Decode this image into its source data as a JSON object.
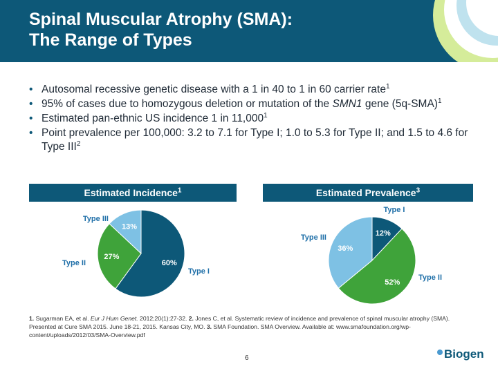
{
  "slide": {
    "title_line1": "Spinal Muscular Atrophy (SMA):",
    "title_line2": "The Range of Types",
    "page_number": "6",
    "logo_text": "Biogen"
  },
  "bullets": [
    {
      "text": "Autosomal recessive genetic disease with a 1 in 40 to 1 in 60 carrier rate",
      "sup": "1"
    },
    {
      "text_a": "95% of cases due to homozygous deletion or mutation of the ",
      "italic": "SMN1",
      "text_b": " gene (5q-SMA)",
      "sup": "1"
    },
    {
      "text": "Estimated pan-ethnic US incidence 1 in 11,000",
      "sup": "1"
    },
    {
      "text": "Point prevalence per 100,000: 3.2 to 7.1 for Type I; 1.0 to 5.3 for Type II; and 1.5 to 4.6 for Type III",
      "sup": "2"
    }
  ],
  "colors": {
    "type_i": "#0d5878",
    "type_ii": "#3fa33a",
    "type_iii": "#7ec1e4",
    "label": "#1f6fa8"
  },
  "chart_data": [
    {
      "type": "pie",
      "title": "Estimated Incidence",
      "title_sup": "1",
      "categories": [
        "Type I",
        "Type II",
        "Type III"
      ],
      "values": [
        60,
        27,
        13
      ],
      "labels": [
        "60%",
        "27%",
        "13%"
      ]
    },
    {
      "type": "pie",
      "title": "Estimated Prevalence",
      "title_sup": "3",
      "categories": [
        "Type I",
        "Type II",
        "Type III"
      ],
      "values": [
        12,
        52,
        36
      ],
      "labels": [
        "12%",
        "52%",
        "36%"
      ]
    }
  ],
  "references": {
    "r1_num": "1.",
    "r1_a": "Sugarman EA, et al.",
    "r1_journal": "Eur J Hum Genet.",
    "r1_b": "2012;20(1):27-32.",
    "r2_num": "2.",
    "r2_text": "Jones C, et al. Systematic review of incidence and prevalence of spinal muscular atrophy (SMA). Presented at Cure SMA 2015. June 18-21, 2015. Kansas City, MO.",
    "r3_num": "3.",
    "r3_text": "SMA Foundation. SMA Overview. Available at: www.smafoundation.org/wp-content/uploads/2012/03/SMA-Overview.pdf"
  }
}
